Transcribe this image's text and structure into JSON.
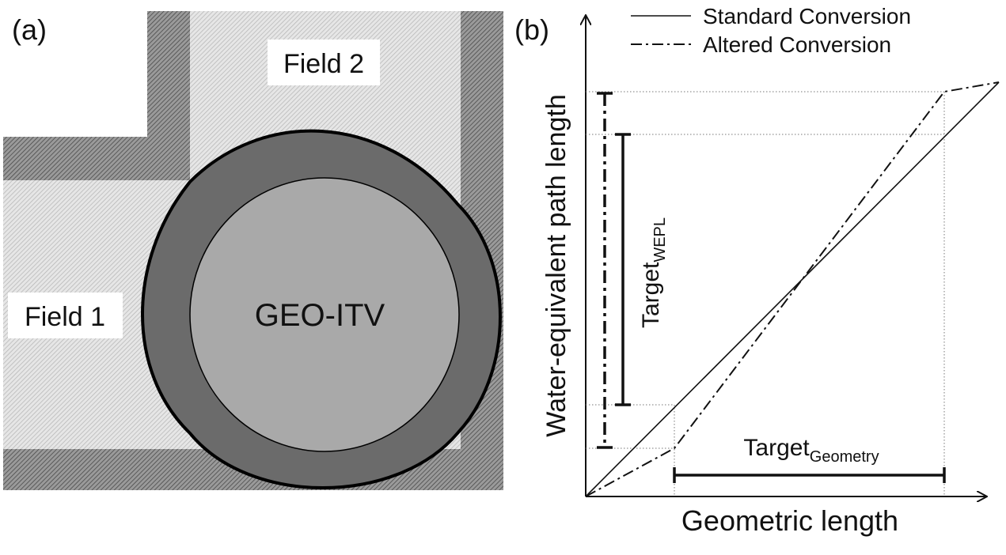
{
  "panel_a": {
    "label": "(a)",
    "field1": "Field 1",
    "field2": "Field 2",
    "center": "GEO-ITV"
  },
  "panel_b": {
    "label": "(b)",
    "legend": {
      "standard": "Standard Conversion",
      "altered": "Altered Conversion"
    },
    "y_axis_label": "Water-equivalent path length",
    "x_axis_label": "Geometric length",
    "target_wepl": {
      "main": "Target",
      "sub": "WEPL"
    },
    "target_geometry": {
      "main": "Target",
      "sub": "Geometry"
    }
  },
  "colors": {
    "dark_ring": "#6b6b6b",
    "inner_circle": "#a9a9a9",
    "hatch_light": "#cfcfcf",
    "hatch_dark": "#6e6e6e"
  }
}
